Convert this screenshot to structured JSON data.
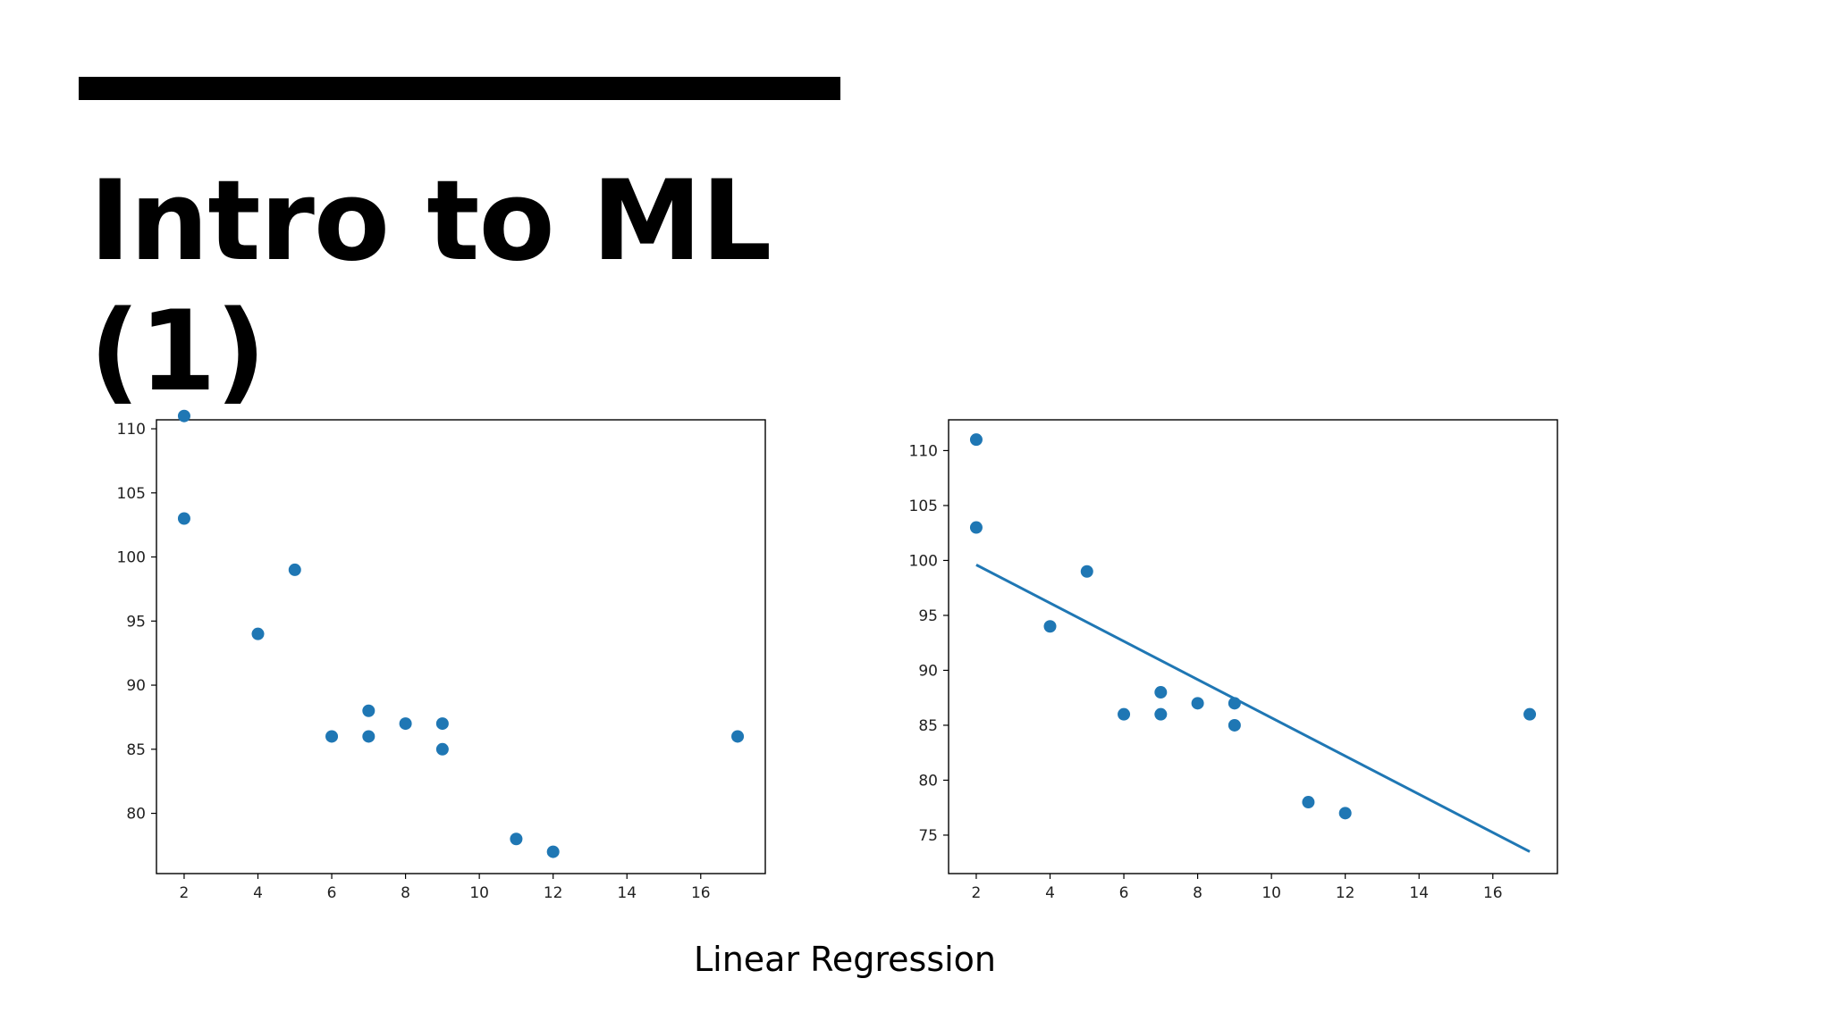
{
  "slide": {
    "title": "Intro to ML (1)",
    "caption": "Linear Regression",
    "accent_color": "#000000"
  },
  "chart_data": [
    {
      "type": "scatter",
      "title": "",
      "xlabel": "",
      "ylabel": "",
      "xlim": [
        1.25,
        17.75
      ],
      "ylim": [
        75.3,
        110.7
      ],
      "xticks": [
        2,
        4,
        6,
        8,
        10,
        12,
        14,
        16
      ],
      "yticks": [
        80,
        85,
        90,
        95,
        100,
        105,
        110
      ],
      "grid": false,
      "series": [
        {
          "color": "#1f77b4",
          "points": [
            [
              5,
              99
            ],
            [
              7,
              86
            ],
            [
              8,
              87
            ],
            [
              7,
              88
            ],
            [
              2,
              111
            ],
            [
              17,
              86
            ],
            [
              2,
              103
            ],
            [
              9,
              87
            ],
            [
              4,
              94
            ],
            [
              11,
              78
            ],
            [
              12,
              77
            ],
            [
              9,
              85
            ],
            [
              6,
              86
            ]
          ]
        }
      ]
    },
    {
      "type": "scatter",
      "title": "",
      "xlabel": "",
      "ylabel": "",
      "xlim": [
        1.25,
        17.75
      ],
      "ylim": [
        71.5,
        112.8
      ],
      "xticks": [
        2,
        4,
        6,
        8,
        10,
        12,
        14,
        16
      ],
      "yticks": [
        75,
        80,
        85,
        90,
        95,
        100,
        105,
        110
      ],
      "grid": false,
      "series": [
        {
          "color": "#1f77b4",
          "points": [
            [
              5,
              99
            ],
            [
              7,
              86
            ],
            [
              8,
              87
            ],
            [
              7,
              88
            ],
            [
              2,
              111
            ],
            [
              17,
              86
            ],
            [
              2,
              103
            ],
            [
              9,
              87
            ],
            [
              4,
              94
            ],
            [
              11,
              78
            ],
            [
              12,
              77
            ],
            [
              9,
              85
            ],
            [
              6,
              86
            ]
          ]
        }
      ],
      "regression_line": {
        "color": "#1f77b4",
        "points": [
          [
            2,
            99.6
          ],
          [
            17,
            73.5
          ]
        ]
      }
    }
  ]
}
